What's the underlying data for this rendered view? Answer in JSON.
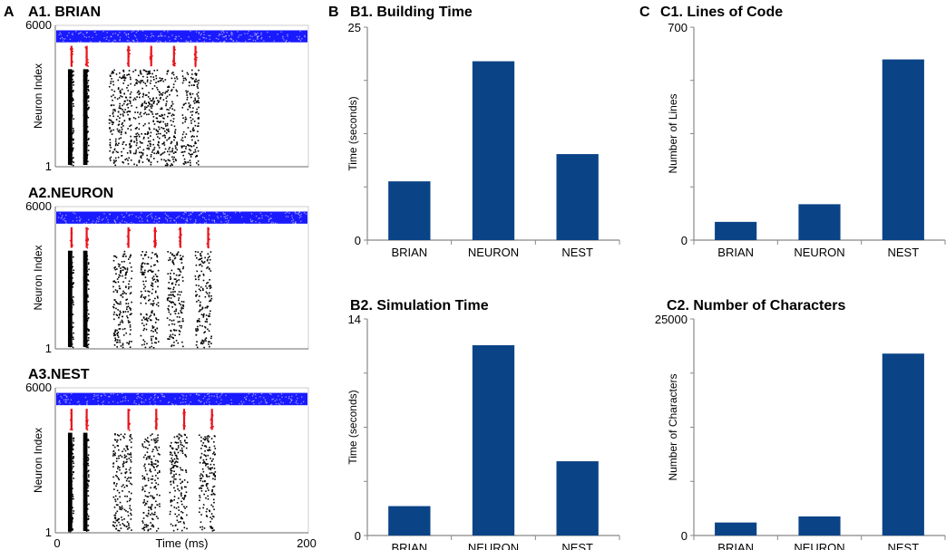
{
  "figure": {
    "panel_letters": [
      "A",
      "B",
      "C"
    ]
  },
  "colors": {
    "bar": "#0b4387",
    "excitatory_spikes": "#000000",
    "input_spikes": "#1a1aff",
    "inhibitory_spikes": "#e8141c",
    "axis": "#888888"
  },
  "chart_data": [
    {
      "id": "A1",
      "type": "scatter",
      "title": "A1. BRIAN",
      "xlabel": "",
      "ylabel": "Neuron Index",
      "xlim": [
        0,
        200
      ],
      "ylim": [
        1,
        6000
      ],
      "y_ticks": [
        "6000",
        "1"
      ],
      "x_ticks": [],
      "burst_times_ms": [
        10,
        22,
        42,
        61,
        79,
        99
      ],
      "burst_widths_ms": [
        4,
        4,
        18,
        17,
        17,
        14
      ]
    },
    {
      "id": "A2",
      "type": "scatter",
      "title": "A2.NEURON",
      "xlabel": "",
      "ylabel": "Neuron Index",
      "xlim": [
        0,
        200
      ],
      "ylim": [
        1,
        6000
      ],
      "y_ticks": [
        "6000",
        "1"
      ],
      "x_ticks": [],
      "burst_times_ms": [
        10,
        22,
        45,
        67,
        88,
        110
      ],
      "burst_widths_ms": [
        4,
        4,
        15,
        14,
        13,
        13
      ]
    },
    {
      "id": "A3",
      "type": "scatter",
      "title": "A3.NEST",
      "xlabel": "Time (ms)",
      "ylabel": "Neuron Index",
      "xlim": [
        0,
        200
      ],
      "ylim": [
        1,
        6000
      ],
      "y_ticks": [
        "6000",
        "1"
      ],
      "x_ticks": [
        "0",
        "200"
      ],
      "burst_times_ms": [
        10,
        22,
        45,
        68,
        90,
        113
      ],
      "burst_widths_ms": [
        4,
        4,
        15,
        14,
        14,
        13
      ]
    },
    {
      "id": "B1",
      "type": "bar",
      "title": "B1. Building Time",
      "xlabel": "",
      "ylabel": "Time (seconds)",
      "categories": [
        "BRIAN",
        "NEURON",
        "NEST"
      ],
      "values": [
        6.9,
        21.0,
        10.1
      ],
      "ylim": [
        0,
        25
      ],
      "y_ticks": [
        "25",
        "0"
      ]
    },
    {
      "id": "B2",
      "type": "bar",
      "title": "B2. Simulation Time",
      "xlabel": "",
      "ylabel": "Time (seconds)",
      "categories": [
        "BRIAN",
        "NEURON",
        "NEST"
      ],
      "values": [
        1.9,
        12.3,
        4.8
      ],
      "ylim": [
        0,
        14
      ],
      "y_ticks": [
        "14",
        "0"
      ]
    },
    {
      "id": "C1",
      "type": "bar",
      "title": "C1. Lines of Code",
      "xlabel": "",
      "ylabel": "Number of Lines",
      "categories": [
        "BRIAN",
        "NEURON",
        "NEST"
      ],
      "values": [
        60,
        118,
        594
      ],
      "ylim": [
        0,
        700
      ],
      "y_ticks": [
        "700",
        "0"
      ]
    },
    {
      "id": "C2",
      "type": "bar",
      "title": "C2. Number of Characters",
      "xlabel": "",
      "ylabel": "Number of Characters",
      "categories": [
        "BRIAN",
        "NEURON",
        "NEST"
      ],
      "values": [
        1500,
        2200,
        21000
      ],
      "ylim": [
        0,
        25000
      ],
      "y_ticks": [
        "25000",
        "0"
      ]
    }
  ]
}
